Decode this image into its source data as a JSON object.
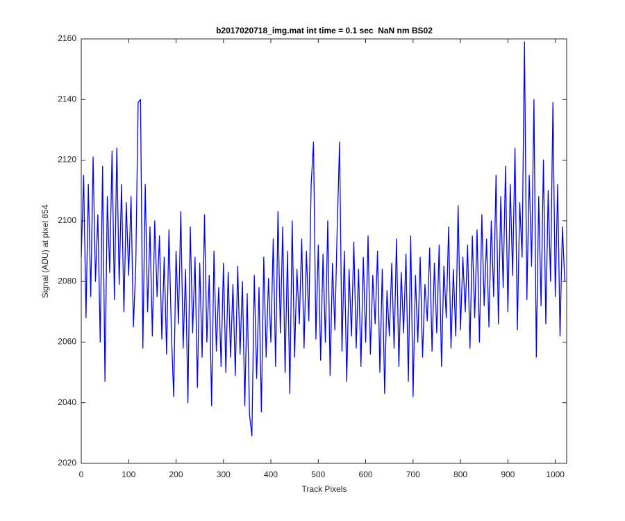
{
  "chart_data": {
    "type": "line",
    "title": "b2017020718_img.mat int time = 0.1 sec  NaN nm BS02",
    "x_label": "Track Pixels",
    "y_label": "Signal (ADU) at pixel 854",
    "color": "#0000ff",
    "xlim": [
      0,
      1024
    ],
    "ylim": [
      2020,
      2160
    ],
    "xticks": [
      0,
      100,
      200,
      300,
      400,
      500,
      600,
      700,
      800,
      900,
      1000
    ],
    "yticks": [
      2020,
      2040,
      2060,
      2080,
      2100,
      2120,
      2140,
      2160
    ],
    "box": true,
    "x": [
      0,
      5,
      10,
      15,
      20,
      25,
      30,
      35,
      40,
      45,
      50,
      55,
      60,
      65,
      70,
      75,
      80,
      85,
      90,
      95,
      100,
      105,
      110,
      115,
      120,
      125,
      130,
      135,
      140,
      145,
      150,
      155,
      160,
      165,
      170,
      175,
      180,
      185,
      190,
      195,
      200,
      205,
      210,
      215,
      220,
      225,
      230,
      235,
      240,
      245,
      250,
      255,
      260,
      265,
      270,
      275,
      280,
      285,
      290,
      295,
      300,
      305,
      310,
      315,
      320,
      325,
      330,
      335,
      340,
      345,
      350,
      355,
      360,
      365,
      370,
      375,
      380,
      385,
      390,
      395,
      400,
      405,
      410,
      415,
      420,
      425,
      430,
      435,
      440,
      445,
      450,
      455,
      460,
      465,
      470,
      475,
      480,
      485,
      490,
      495,
      500,
      505,
      510,
      515,
      520,
      525,
      530,
      535,
      540,
      545,
      550,
      555,
      560,
      565,
      570,
      575,
      580,
      585,
      590,
      595,
      600,
      605,
      610,
      615,
      620,
      625,
      630,
      635,
      640,
      645,
      650,
      655,
      660,
      665,
      670,
      675,
      680,
      685,
      690,
      695,
      700,
      705,
      710,
      715,
      720,
      725,
      730,
      735,
      740,
      745,
      750,
      755,
      760,
      765,
      770,
      775,
      780,
      785,
      790,
      795,
      800,
      805,
      810,
      815,
      820,
      825,
      830,
      835,
      840,
      845,
      850,
      855,
      860,
      865,
      870,
      875,
      880,
      885,
      890,
      895,
      900,
      905,
      910,
      915,
      920,
      925,
      930,
      935,
      940,
      945,
      950,
      955,
      960,
      965,
      970,
      975,
      980,
      985,
      990,
      995,
      1000,
      1005,
      1010,
      1015,
      1020
    ],
    "values": [
      2088,
      2115,
      2068,
      2112,
      2075,
      2121,
      2080,
      2102,
      2060,
      2118,
      2047,
      2108,
      2083,
      2123,
      2074,
      2124,
      2079,
      2112,
      2070,
      2106,
      2082,
      2108,
      2065,
      2085,
      2139,
      2140,
      2058,
      2112,
      2070,
      2098,
      2062,
      2100,
      2075,
      2095,
      2061,
      2088,
      2056,
      2097,
      2064,
      2042,
      2090,
      2066,
      2103,
      2058,
      2084,
      2040,
      2098,
      2063,
      2088,
      2045,
      2086,
      2055,
      2102,
      2060,
      2082,
      2039,
      2090,
      2057,
      2078,
      2052,
      2086,
      2050,
      2083,
      2055,
      2079,
      2049,
      2085,
      2056,
      2080,
      2039,
      2076,
      2036,
      2029,
      2082,
      2048,
      2078,
      2037,
      2088,
      2055,
      2081,
      2060,
      2094,
      2052,
      2103,
      2063,
      2098,
      2050,
      2090,
      2043,
      2100,
      2055,
      2084,
      2066,
      2094,
      2058,
      2090,
      2067,
      2112,
      2126,
      2061,
      2092,
      2054,
      2089,
      2060,
      2100,
      2049,
      2086,
      2064,
      2098,
      2126,
      2057,
      2090,
      2047,
      2084,
      2062,
      2093,
      2058,
      2084,
      2052,
      2088,
      2060,
      2095,
      2056,
      2082,
      2066,
      2090,
      2050,
      2084,
      2043,
      2077,
      2062,
      2086,
      2058,
      2094,
      2052,
      2083,
      2063,
      2089,
      2047,
      2095,
      2042,
      2082,
      2060,
      2088,
      2055,
      2079,
      2067,
      2091,
      2057,
      2086,
      2063,
      2092,
      2052,
      2085,
      2068,
      2098,
      2058,
      2084,
      2062,
      2105,
      2064,
      2088,
      2070,
      2092,
      2058,
      2095,
      2068,
      2097,
      2060,
      2102,
      2072,
      2094,
      2065,
      2100,
      2075,
      2115,
      2066,
      2108,
      2078,
      2118,
      2070,
      2112,
      2082,
      2124,
      2064,
      2106,
      2088,
      2159,
      2074,
      2115,
      2085,
      2140,
      2055,
      2108,
      2072,
      2120,
      2066,
      2110,
      2080,
      2139,
      2075,
      2112,
      2062,
      2098,
      2080
    ]
  }
}
